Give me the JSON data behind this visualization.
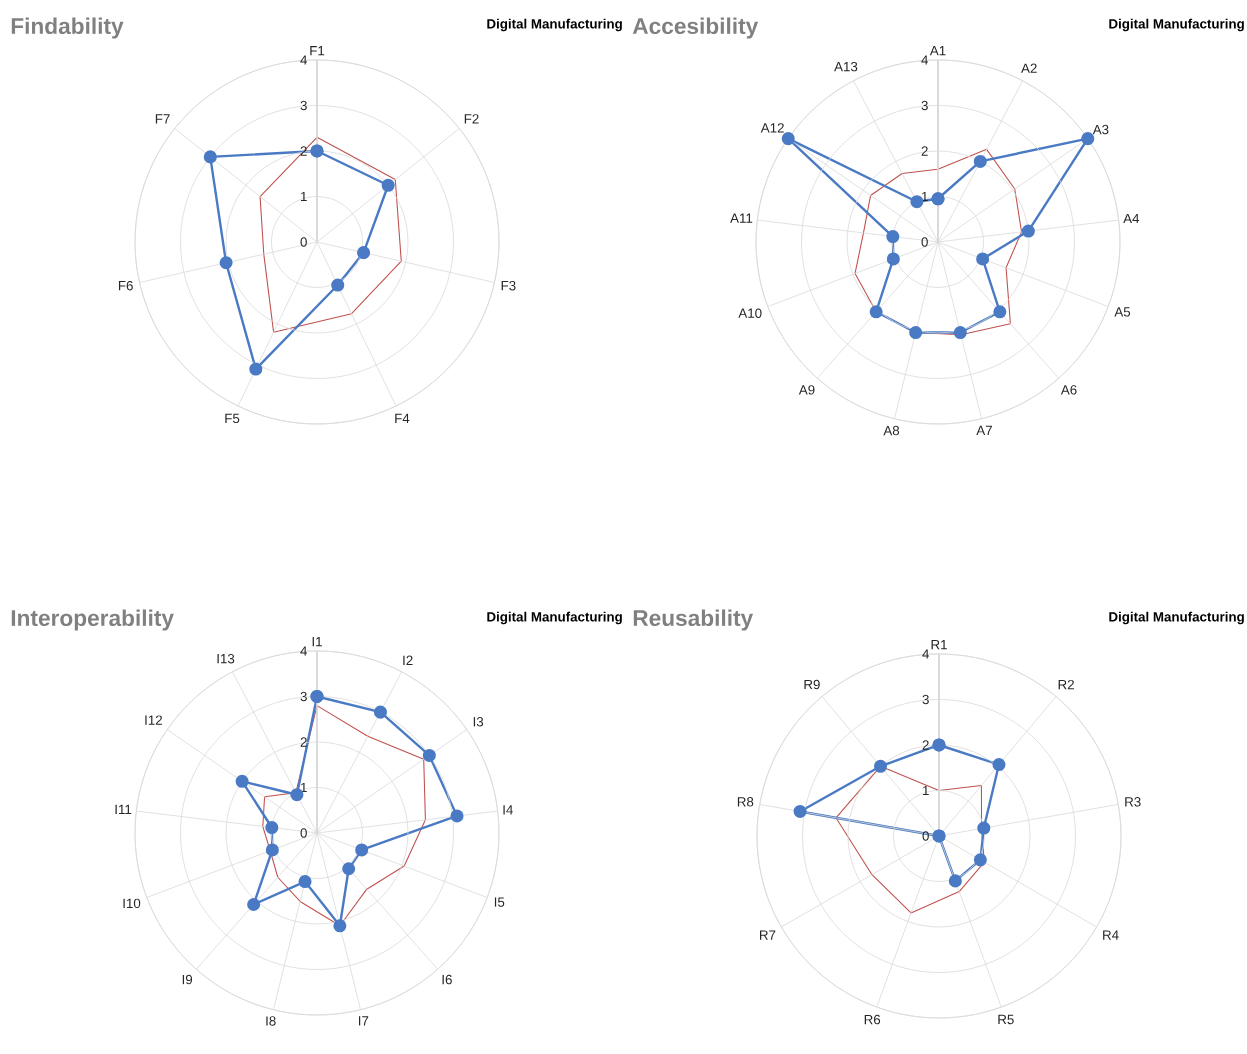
{
  "chart_data": [
    {
      "type": "radar",
      "title": "Findability",
      "subtitle": "Digital Manufacturing",
      "categories": [
        "F1",
        "F2",
        "F3",
        "F4",
        "F5",
        "F6",
        "F7"
      ],
      "ylim": [
        0,
        4
      ],
      "yticks": [
        0,
        1,
        2,
        3,
        4
      ],
      "grid": true,
      "marker": "circle",
      "line_style": "solid",
      "series": [
        {
          "color": "#c0504d",
          "marker": "none",
          "values": [
            2.3,
            2.2,
            1.9,
            1.75,
            2.2,
            1.2,
            1.6
          ]
        },
        {
          "color": "#4a7ac4",
          "values": [
            2.0,
            2.0,
            1.05,
            1.05,
            3.1,
            2.05,
            3.0
          ]
        }
      ]
    },
    {
      "type": "radar",
      "title": "Accesibility",
      "subtitle": "Digital Manufacturing",
      "categories": [
        "A1",
        "A2",
        "A3",
        "A4",
        "A5",
        "A6",
        "A7",
        "A8",
        "A9",
        "A10",
        "A11",
        "A12",
        "A13"
      ],
      "ylim": [
        0,
        4
      ],
      "yticks": [
        0,
        1,
        2,
        3,
        4
      ],
      "grid": true,
      "marker": "circle",
      "line_style": "solid",
      "series": [
        {
          "color": "#c0504d",
          "marker": "none",
          "values": [
            1.6,
            2.3,
            2.05,
            1.85,
            1.6,
            2.4,
            2.1,
            2.05,
            2.05,
            1.95,
            1.65,
            1.8,
            1.7
          ]
        },
        {
          "color": "#4a7ac4",
          "values": [
            0.95,
            2.0,
            4.0,
            2.0,
            1.05,
            2.05,
            2.05,
            2.05,
            2.05,
            1.05,
            1.0,
            4.0,
            1.0
          ]
        }
      ]
    },
    {
      "type": "radar",
      "title": "Interoperability",
      "subtitle": "Digital Manufacturing",
      "categories": [
        "I1",
        "I2",
        "I3",
        "I4",
        "I5",
        "I6",
        "I7",
        "I8",
        "I9",
        "I10",
        "I11",
        "I12",
        "I13"
      ],
      "ylim": [
        0,
        4
      ],
      "yticks": [
        0,
        1,
        2,
        3,
        4
      ],
      "grid": true,
      "marker": "circle",
      "line_style": "solid",
      "series": [
        {
          "color": "#c0504d",
          "marker": "none",
          "values": [
            2.8,
            2.4,
            2.85,
            2.4,
            2.05,
            1.65,
            2.1,
            1.55,
            1.3,
            1.1,
            1.2,
            1.4,
            1.0
          ]
        },
        {
          "color": "#4a7ac4",
          "values": [
            3.0,
            3.0,
            3.0,
            3.1,
            1.05,
            1.05,
            2.1,
            1.1,
            2.1,
            1.05,
            1.0,
            2.0,
            0.95
          ]
        }
      ]
    },
    {
      "type": "radar",
      "title": "Reusability",
      "subtitle": "Digital Manufacturing",
      "categories": [
        "R1",
        "R2",
        "R3",
        "R4",
        "R5",
        "R6",
        "R7",
        "R8",
        "R9"
      ],
      "ylim": [
        0,
        4
      ],
      "yticks": [
        0,
        1,
        2,
        3,
        4
      ],
      "grid": true,
      "marker": "circle",
      "line_style": "solid",
      "series": [
        {
          "color": "#c0504d",
          "marker": "none",
          "values": [
            1.0,
            1.45,
            0.95,
            1.15,
            1.3,
            1.8,
            1.7,
            2.3,
            2.0
          ]
        },
        {
          "color": "#4a7ac4",
          "values": [
            2.0,
            2.05,
            1.0,
            1.05,
            1.05,
            0.0,
            0.0,
            3.1,
            2.0
          ]
        }
      ]
    }
  ]
}
